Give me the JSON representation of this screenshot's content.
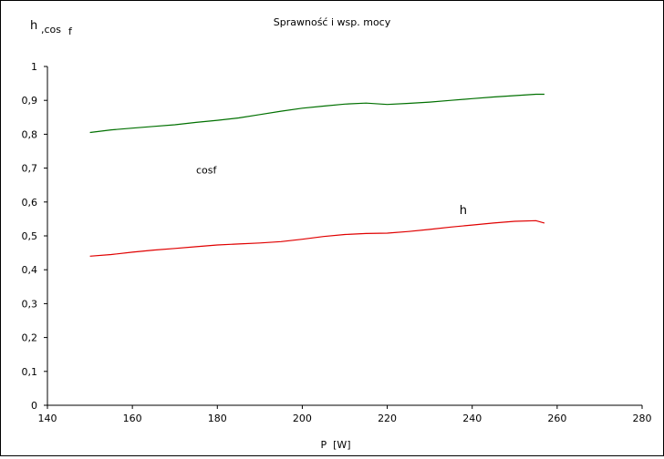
{
  "chart_data": {
    "type": "line",
    "title": "Sprawność i wsp. mocy",
    "xlabel": "P  [W]",
    "ylabel_main": "h",
    "ylabel_sub1": ",cos",
    "ylabel_sub2": "f",
    "xlim": [
      140,
      280
    ],
    "ylim": [
      0,
      1
    ],
    "x_ticks": [
      "140",
      "160",
      "180",
      "200",
      "220",
      "240",
      "260",
      "280"
    ],
    "y_ticks": [
      "0",
      "0,1",
      "0,2",
      "0,3",
      "0,4",
      "0,5",
      "0,6",
      "0,7",
      "0,8",
      "0,9",
      "1"
    ],
    "grid": false,
    "series": [
      {
        "name": "cosf",
        "color": "#007000",
        "x": [
          150,
          155,
          160,
          165,
          170,
          175,
          180,
          185,
          190,
          195,
          200,
          205,
          210,
          215,
          220,
          225,
          230,
          235,
          240,
          245,
          250,
          255,
          257
        ],
        "y": [
          0.805,
          0.813,
          0.818,
          0.823,
          0.828,
          0.835,
          0.841,
          0.848,
          0.858,
          0.868,
          0.877,
          0.883,
          0.889,
          0.892,
          0.888,
          0.891,
          0.895,
          0.9,
          0.905,
          0.91,
          0.914,
          0.918,
          0.918
        ]
      },
      {
        "name": "h",
        "color": "#e00000",
        "x": [
          150,
          155,
          160,
          165,
          170,
          175,
          180,
          185,
          190,
          195,
          200,
          205,
          210,
          215,
          220,
          225,
          230,
          235,
          240,
          245,
          250,
          255,
          257
        ],
        "y": [
          0.44,
          0.445,
          0.452,
          0.458,
          0.463,
          0.468,
          0.473,
          0.476,
          0.479,
          0.483,
          0.49,
          0.498,
          0.504,
          0.507,
          0.508,
          0.513,
          0.519,
          0.526,
          0.532,
          0.538,
          0.543,
          0.545,
          0.538
        ]
      }
    ]
  }
}
